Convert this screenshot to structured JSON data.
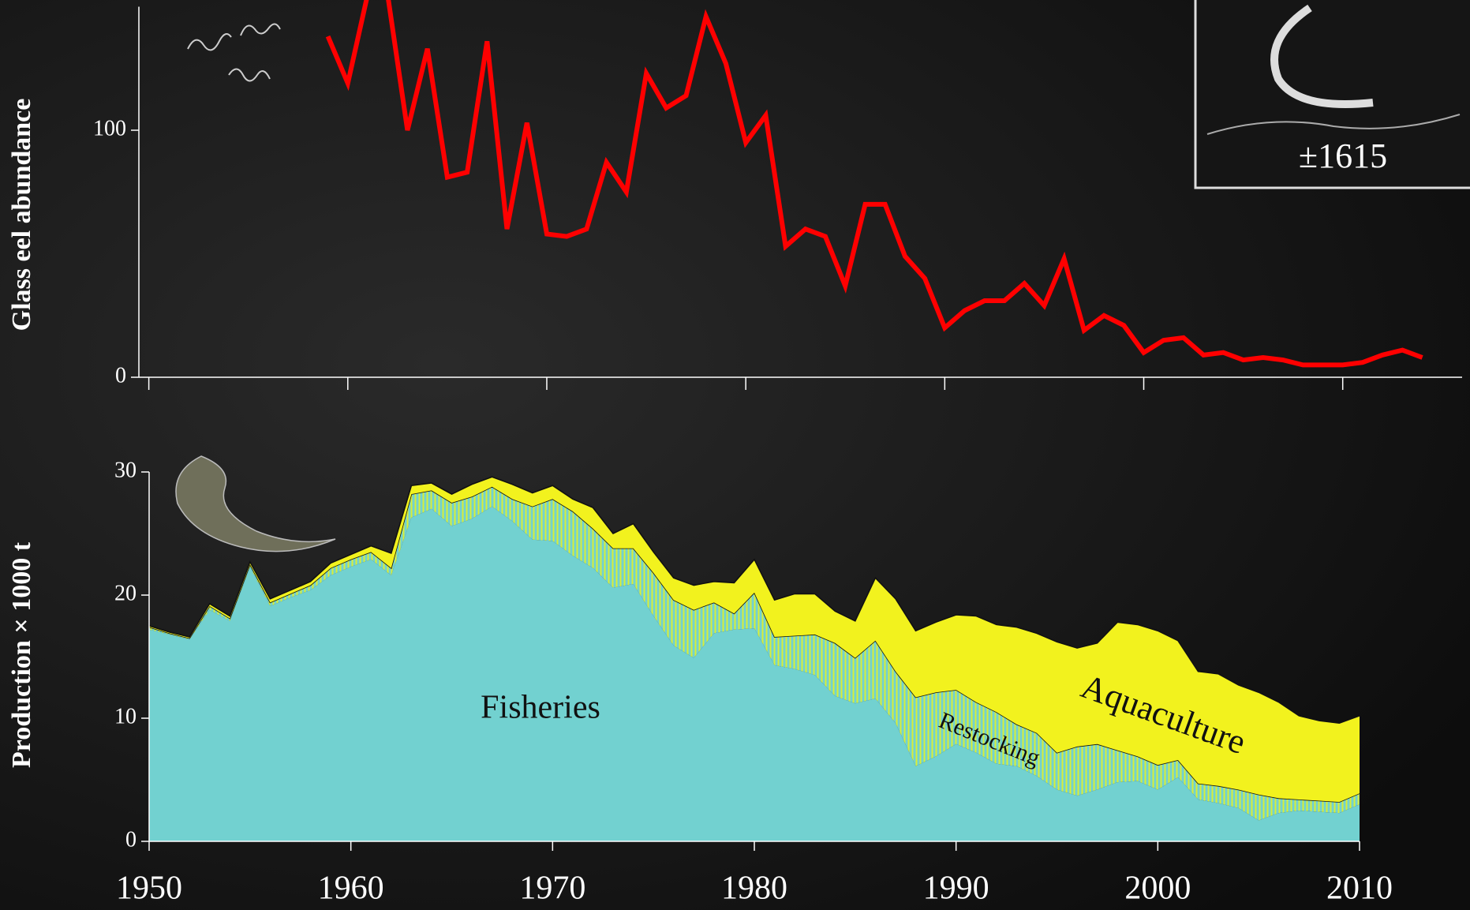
{
  "chart_data": [
    {
      "type": "line",
      "y_label": "Glass eel abundance",
      "annotation": "±1615",
      "x": [
        1959,
        1960,
        1961,
        1962,
        1963,
        1964,
        1965,
        1966,
        1967,
        1968,
        1969,
        1970,
        1971,
        1972,
        1973,
        1974,
        1975,
        1976,
        1977,
        1978,
        1979,
        1980,
        1981,
        1982,
        1983,
        1984,
        1985,
        1986,
        1987,
        1988,
        1989,
        1990,
        1991,
        1992,
        1993,
        1994,
        1995,
        1996,
        1997,
        1998,
        1999,
        2000,
        2001,
        2002,
        2003,
        2004,
        2005,
        2006,
        2007,
        2008,
        2009,
        2010,
        2011,
        2012,
        2013,
        2014
      ],
      "values": [
        138,
        119,
        155,
        155,
        100,
        133,
        81,
        83,
        136,
        60,
        103,
        58,
        57,
        60,
        87,
        75,
        123,
        109,
        114,
        146,
        127,
        95,
        106,
        53,
        60,
        57,
        37,
        70,
        70,
        49,
        40,
        20,
        27,
        31,
        31,
        38,
        29,
        48,
        19,
        25,
        21,
        10,
        15,
        16,
        9,
        10,
        7,
        8,
        7,
        5,
        5,
        5,
        6,
        9,
        11,
        8
      ],
      "color": "#ff0000",
      "xlim": [
        1949.5,
        2016
      ],
      "ylim": [
        0,
        150
      ],
      "yticks": [
        0,
        100
      ]
    },
    {
      "type": "stacked_area",
      "y_label": "Production × 1000 t",
      "x": [
        1950,
        1951,
        1952,
        1953,
        1954,
        1955,
        1956,
        1957,
        1958,
        1959,
        1960,
        1961,
        1962,
        1963,
        1964,
        1965,
        1966,
        1967,
        1968,
        1969,
        1970,
        1971,
        1972,
        1973,
        1974,
        1975,
        1976,
        1977,
        1978,
        1979,
        1980,
        1981,
        1982,
        1983,
        1984,
        1985,
        1986,
        1987,
        1988,
        1989,
        1990,
        1991,
        1992,
        1993,
        1994,
        1995,
        1996,
        1997,
        1998,
        1999,
        2000,
        2001,
        2002,
        2003,
        2004,
        2005,
        2006,
        2007,
        2008,
        2009,
        2010
      ],
      "series": [
        {
          "name": "Fisheries",
          "color": "#72d1d0",
          "values": [
            17.2,
            16.8,
            16.4,
            18.8,
            17.9,
            22.3,
            19.1,
            19.8,
            20.4,
            21.6,
            22.3,
            22.9,
            21.6,
            26.3,
            27.0,
            25.6,
            26.2,
            27.2,
            26.0,
            24.5,
            24.4,
            23.2,
            22.2,
            20.6,
            20.9,
            18.3,
            15.9,
            14.9,
            16.9,
            17.2,
            17.3,
            14.3,
            14.0,
            13.5,
            11.8,
            11.2,
            11.6,
            9.6,
            6.1,
            6.9,
            7.9,
            7.2,
            6.3,
            6.1,
            5.3,
            4.2,
            3.7,
            4.2,
            4.8,
            4.9,
            4.2,
            5.2,
            3.4,
            3.1,
            2.7,
            1.7,
            2.3,
            2.5,
            2.4,
            2.3,
            3.0
          ]
        },
        {
          "name": "Restocking",
          "color": "#d8ee3a",
          "values": [
            0.2,
            0.1,
            0.1,
            0.3,
            0.2,
            0.2,
            0.3,
            0.3,
            0.4,
            0.6,
            0.6,
            0.6,
            0.6,
            1.9,
            1.5,
            1.9,
            1.8,
            1.6,
            1.8,
            2.7,
            3.4,
            3.6,
            3.2,
            3.2,
            2.9,
            3.5,
            3.7,
            3.9,
            2.5,
            1.3,
            2.9,
            2.3,
            2.7,
            3.3,
            4.3,
            3.7,
            4.7,
            4.2,
            5.6,
            5.2,
            4.4,
            4.1,
            4.2,
            3.4,
            3.5,
            3.0,
            4.0,
            3.7,
            2.6,
            2.0,
            2.0,
            1.4,
            1.3,
            1.4,
            1.5,
            2.1,
            1.2,
            0.9,
            0.9,
            0.9,
            0.9
          ]
        },
        {
          "name": "Aquaculture",
          "color": "#f2f21e",
          "values": [
            0.1,
            0.1,
            0.1,
            0.2,
            0.2,
            0.2,
            0.3,
            0.3,
            0.3,
            0.4,
            0.4,
            0.5,
            1.2,
            0.7,
            0.6,
            0.7,
            1.0,
            0.8,
            1.2,
            1.1,
            1.1,
            1.0,
            1.7,
            1.2,
            2.0,
            1.7,
            1.8,
            2.0,
            1.7,
            2.5,
            2.7,
            3.0,
            3.4,
            3.3,
            2.6,
            3.0,
            5.1,
            5.9,
            5.4,
            5.7,
            6.1,
            7.0,
            7.1,
            7.9,
            8.1,
            9.0,
            8.0,
            8.2,
            10.4,
            10.7,
            10.9,
            9.7,
            9.1,
            9.1,
            8.5,
            8.3,
            7.8,
            6.8,
            6.5,
            6.4,
            6.3
          ]
        }
      ],
      "xlim": [
        1950,
        2010
      ],
      "xticks": [
        1950,
        1960,
        1970,
        1980,
        1990,
        2000,
        2010
      ],
      "ylim": [
        0,
        30
      ],
      "yticks": [
        0,
        10,
        20,
        30
      ]
    }
  ]
}
